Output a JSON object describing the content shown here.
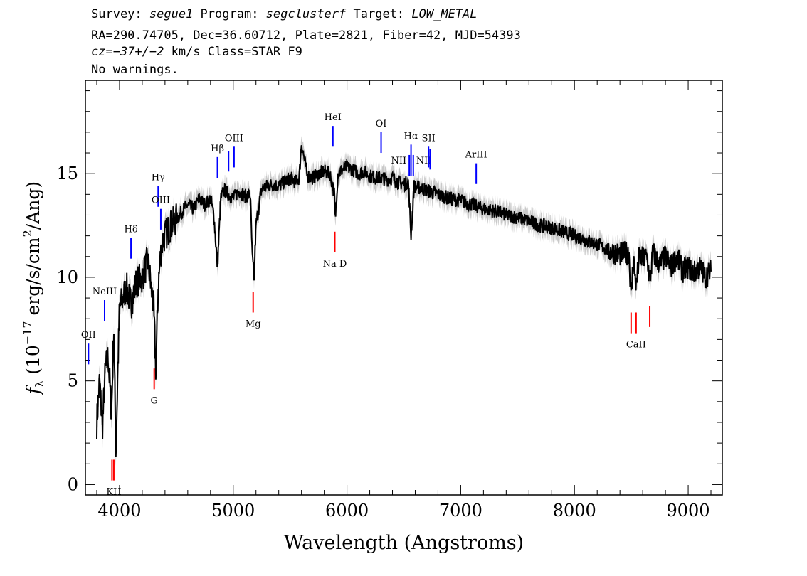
{
  "header": {
    "line1": {
      "survey_label": "Survey: ",
      "survey": "segue1",
      "program_label": " Program: ",
      "program": "segclusterf",
      "target_label": " Target: ",
      "target": "LOW_METAL"
    },
    "line2": "RA=290.74705, Dec=36.60712, Plate=2821, Fiber=42, MJD=54393",
    "line3": {
      "cz_label": "cz=",
      "cz_value": "−37+/−2",
      "cz_rest": " km/s Class=STAR F9"
    },
    "line4": "No warnings."
  },
  "chart_data": {
    "type": "line",
    "title": "",
    "xlabel": "Wavelength (Angstroms)",
    "ylabel_symbol": "f",
    "ylabel_subscript": "λ",
    "ylabel_prefix": " (10",
    "ylabel_exponent": "−17",
    "ylabel_units": " erg/s/cm",
    "ylabel_units_exponent": "2",
    "ylabel_suffix": "/Ang)",
    "xlim": [
      3700,
      9300
    ],
    "ylim": [
      -0.5,
      19.5
    ],
    "xticks": [
      4000,
      5000,
      6000,
      7000,
      8000,
      9000
    ],
    "yticks": [
      0,
      5,
      10,
      15
    ],
    "grid": false,
    "series": [
      {
        "x": [
          3800,
          3825,
          3850,
          3875,
          3900,
          3930,
          3950,
          3968,
          3985,
          4000,
          4030,
          4060,
          4101,
          4150,
          4200,
          4250,
          4300,
          4320,
          4340,
          4360,
          4380,
          4400,
          4450,
          4500,
          4550,
          4600,
          4650,
          4700,
          4750,
          4800,
          4830,
          4861,
          4890,
          4920,
          4960,
          5000,
          5050,
          5100,
          5150,
          5167,
          5183,
          5200,
          5250,
          5300,
          5350,
          5400,
          5450,
          5500,
          5550,
          5580,
          5600,
          5650,
          5700,
          5750,
          5800,
          5850,
          5890,
          5896,
          5920,
          5960,
          6000,
          6050,
          6100,
          6150,
          6200,
          6250,
          6300,
          6350,
          6400,
          6450,
          6500,
          6540,
          6563,
          6590,
          6650,
          6700,
          6800,
          6900,
          7000,
          7100,
          7200,
          7300,
          7400,
          7500,
          7600,
          7700,
          7800,
          7900,
          8000,
          8100,
          8200,
          8300,
          8400,
          8480,
          8498,
          8520,
          8542,
          8570,
          8600,
          8640,
          8662,
          8690,
          8750,
          8800,
          8850,
          8900,
          8950,
          9000,
          9050,
          9100,
          9150,
          9200
        ],
        "values": [
          3.0,
          5.0,
          2.8,
          5.5,
          6.2,
          3.5,
          7.5,
          1.5,
          5.5,
          8.5,
          9.0,
          9.5,
          8.7,
          9.8,
          10.0,
          10.8,
          8.5,
          5.5,
          9.5,
          11.0,
          11.8,
          12.0,
          12.5,
          12.8,
          13.2,
          13.5,
          13.3,
          13.8,
          13.5,
          13.8,
          13.0,
          10.5,
          13.8,
          14.2,
          14.0,
          13.8,
          14.2,
          13.9,
          14.0,
          11.0,
          10.0,
          12.5,
          14.3,
          14.4,
          14.5,
          14.4,
          14.6,
          14.8,
          14.6,
          14.8,
          16.5,
          14.9,
          14.8,
          15.0,
          15.1,
          15.0,
          14.0,
          12.7,
          15.0,
          15.2,
          15.3,
          15.2,
          15.0,
          15.1,
          14.9,
          14.8,
          14.8,
          14.7,
          14.8,
          14.6,
          14.5,
          14.6,
          12.0,
          14.4,
          14.3,
          14.2,
          14.0,
          13.8,
          13.7,
          13.5,
          13.3,
          13.2,
          13.0,
          12.9,
          12.7,
          12.5,
          12.4,
          12.2,
          12.0,
          11.8,
          11.6,
          11.3,
          11.1,
          11.2,
          9.0,
          11.0,
          9.5,
          11.0,
          10.9,
          11.0,
          9.8,
          11.2,
          10.6,
          11.0,
          10.5,
          11.0,
          10.3,
          10.5,
          10.2,
          10.5,
          10.0,
          10.3
        ]
      }
    ],
    "line_markers": [
      {
        "label": "HeI",
        "wl": 5876,
        "y0": 16.3,
        "y1": 17.3,
        "color": "blue",
        "label_side": "above"
      },
      {
        "label": "OI",
        "wl": 6300,
        "y0": 16.0,
        "y1": 17.0,
        "color": "blue",
        "label_side": "above"
      },
      {
        "label": "Hα",
        "wl": 6563,
        "y0": 14.9,
        "y1": 16.4,
        "color": "blue",
        "label_side": "above"
      },
      {
        "label": "NII",
        "wl": 6548,
        "y0": 14.9,
        "y1": 15.9,
        "color": "blue",
        "label_side": "left"
      },
      {
        "label": "NII",
        "wl": 6583,
        "y0": 14.9,
        "y1": 15.9,
        "color": "blue",
        "label_side": "right"
      },
      {
        "label": "SII",
        "wl": 6717,
        "y0": 15.3,
        "y1": 16.3,
        "color": "blue",
        "label_side": "above"
      },
      {
        "label": "",
        "wl": 6731,
        "y0": 15.2,
        "y1": 16.2,
        "color": "blue",
        "label_side": "none"
      },
      {
        "label": "ArIII",
        "wl": 7136,
        "y0": 14.5,
        "y1": 15.5,
        "color": "blue",
        "label_side": "above"
      },
      {
        "label": "OIII",
        "wl": 5007,
        "y0": 15.3,
        "y1": 16.3,
        "color": "blue",
        "label_side": "above"
      },
      {
        "label": "",
        "wl": 4959,
        "y0": 15.1,
        "y1": 16.1,
        "color": "blue",
        "label_side": "none"
      },
      {
        "label": "Hβ",
        "wl": 4861,
        "y0": 14.8,
        "y1": 15.8,
        "color": "blue",
        "label_side": "above"
      },
      {
        "label": "Hγ",
        "wl": 4340,
        "y0": 13.4,
        "y1": 14.4,
        "color": "blue",
        "label_side": "above"
      },
      {
        "label": "OIII",
        "wl": 4363,
        "y0": 12.3,
        "y1": 13.3,
        "color": "blue",
        "label_side": "above"
      },
      {
        "label": "Hδ",
        "wl": 4101,
        "y0": 10.9,
        "y1": 11.9,
        "color": "blue",
        "label_side": "above"
      },
      {
        "label": "NeIII",
        "wl": 3869,
        "y0": 7.9,
        "y1": 8.9,
        "color": "blue",
        "label_side": "above"
      },
      {
        "label": "OII",
        "wl": 3727,
        "y0": 5.8,
        "y1": 6.8,
        "color": "blue",
        "label_side": "above"
      },
      {
        "label": "Na D",
        "wl": 5893,
        "y0": 11.2,
        "y1": 12.2,
        "color": "red",
        "label_side": "below"
      },
      {
        "label": "Mg",
        "wl": 5175,
        "y0": 8.3,
        "y1": 9.3,
        "color": "red",
        "label_side": "below"
      },
      {
        "label": "G",
        "wl": 4305,
        "y0": 4.6,
        "y1": 5.6,
        "color": "red",
        "label_side": "below"
      },
      {
        "label": "",
        "wl": 3934,
        "y0": 0.2,
        "y1": 1.2,
        "color": "red",
        "label_side": "none"
      },
      {
        "label": "KH",
        "wl": 3950,
        "y0": 0.2,
        "y1": 1.2,
        "color": "red",
        "label_side": "below"
      },
      {
        "label": "",
        "wl": 8498,
        "y0": 7.3,
        "y1": 8.3,
        "color": "red",
        "label_side": "none"
      },
      {
        "label": "CaII",
        "wl": 8542,
        "y0": 7.3,
        "y1": 8.3,
        "color": "red",
        "label_side": "below"
      },
      {
        "label": "",
        "wl": 8662,
        "y0": 7.6,
        "y1": 8.6,
        "color": "red",
        "label_side": "none"
      }
    ],
    "colors": {
      "flux": "#000000",
      "error_band": "#bbbbbb",
      "emission": "#0000ff",
      "absorption": "#ff0000"
    }
  }
}
